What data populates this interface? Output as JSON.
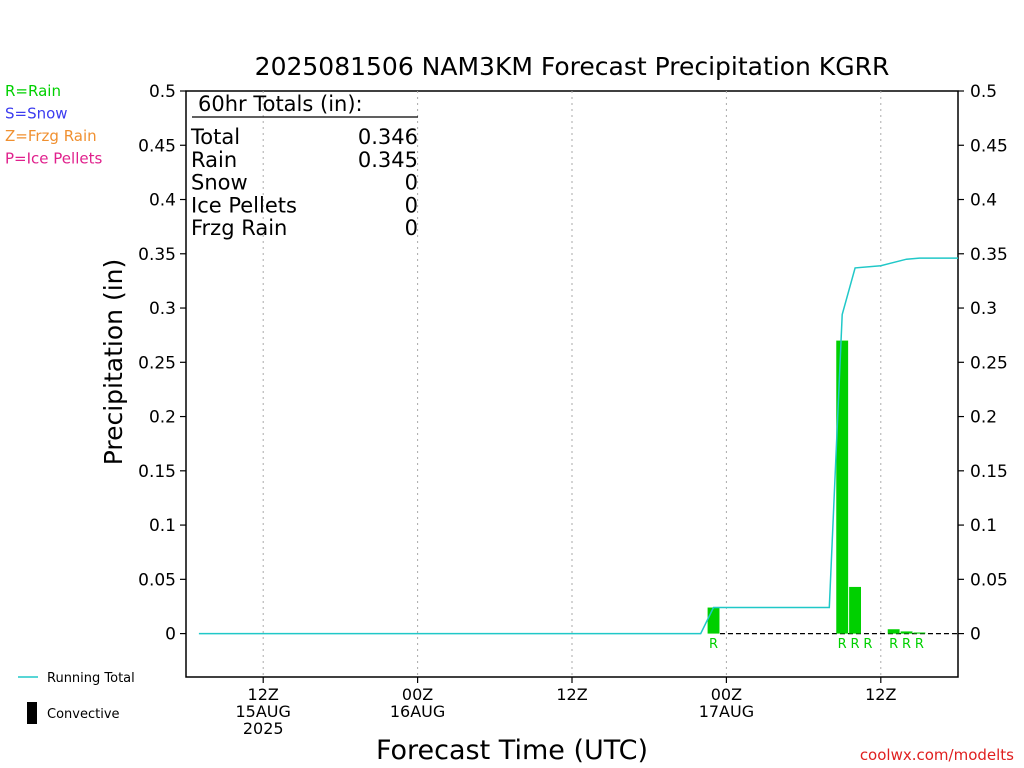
{
  "chart_data": {
    "type": "bar",
    "title": "2025081506 NAM3KM Forecast Precipitation KGRR",
    "xlabel": "Forecast Time (UTC)",
    "ylabel": "Precipitation (in)",
    "ylim": [
      -0.04,
      0.5
    ],
    "xlim_hours": [
      -6,
      54
    ],
    "grid": true,
    "yticks": [
      "0",
      "0.05",
      "0.1",
      "0.15",
      "0.2",
      "0.25",
      "0.3",
      "0.35",
      "0.4",
      "0.45",
      "0.5"
    ],
    "ytick_values": [
      0,
      0.05,
      0.1,
      0.15,
      0.2,
      0.25,
      0.3,
      0.35,
      0.4,
      0.45,
      0.5
    ],
    "xticks": [
      {
        "hour": 0,
        "lines": [
          "12Z",
          "15AUG",
          "2025"
        ]
      },
      {
        "hour": 12,
        "lines": [
          "00Z",
          "16AUG"
        ]
      },
      {
        "hour": 24,
        "lines": [
          "12Z"
        ]
      },
      {
        "hour": 36,
        "lines": [
          "00Z",
          "17AUG"
        ]
      },
      {
        "hour": 48,
        "lines": [
          "12Z"
        ]
      }
    ],
    "bars": [
      {
        "hour": 35,
        "value": 0.024,
        "ptype": "R"
      },
      {
        "hour": 45,
        "value": 0.27,
        "ptype": "R"
      },
      {
        "hour": 46,
        "value": 0.043,
        "ptype": "R"
      },
      {
        "hour": 47,
        "value": 0.0,
        "ptype": "R"
      },
      {
        "hour": 49,
        "value": 0.004,
        "ptype": "R"
      },
      {
        "hour": 50,
        "value": 0.002,
        "ptype": "R"
      },
      {
        "hour": 51,
        "value": 0.001,
        "ptype": "R"
      }
    ],
    "running_total": {
      "name": "Running Total",
      "hours": [
        -5,
        34,
        35,
        44,
        45,
        46,
        48,
        50,
        51,
        54
      ],
      "values": [
        0,
        0,
        0.024,
        0.024,
        0.294,
        0.337,
        0.339,
        0.345,
        0.346,
        0.346
      ]
    },
    "colors": {
      "rain": "#00d000",
      "snow": "#3c3cf0",
      "frzg_rain": "#f09030",
      "ice_pellets": "#e0208c",
      "running_total": "#20c8c8",
      "convective": "#000000",
      "grid": "#aaaaaa",
      "source": "#e02020"
    }
  },
  "totals_box": {
    "heading": "60hr Totals (in):",
    "rows": [
      {
        "label": "Total",
        "value": "0.346"
      },
      {
        "label": "Rain",
        "value": "0.345"
      },
      {
        "label": "Snow",
        "value": "0"
      },
      {
        "label": "Ice Pellets",
        "value": "0"
      },
      {
        "label": "Frzg Rain",
        "value": "0"
      }
    ]
  },
  "legend_types": [
    {
      "text": "R=Rain",
      "color": "#00d000"
    },
    {
      "text": "S=Snow",
      "color": "#3c3cf0"
    },
    {
      "text": "Z=Frzg Rain",
      "color": "#f09030"
    },
    {
      "text": "P=Ice Pellets",
      "color": "#e0208c"
    }
  ],
  "legend_bottom": {
    "running_total": "Running Total",
    "convective": "Convective"
  },
  "source_credit": "coolwx.com/modelts"
}
